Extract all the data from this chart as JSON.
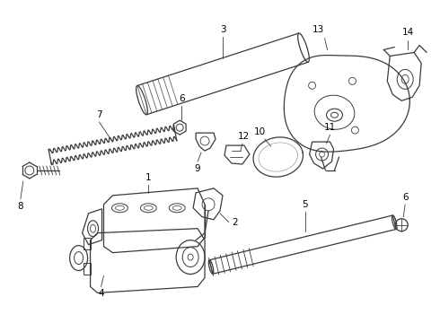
{
  "background_color": "#ffffff",
  "line_color": "#3a3a3a",
  "line_width": 0.9,
  "label_color": "#000000",
  "label_fontsize": 7.5,
  "fig_width": 4.9,
  "fig_height": 3.6,
  "dpi": 100
}
